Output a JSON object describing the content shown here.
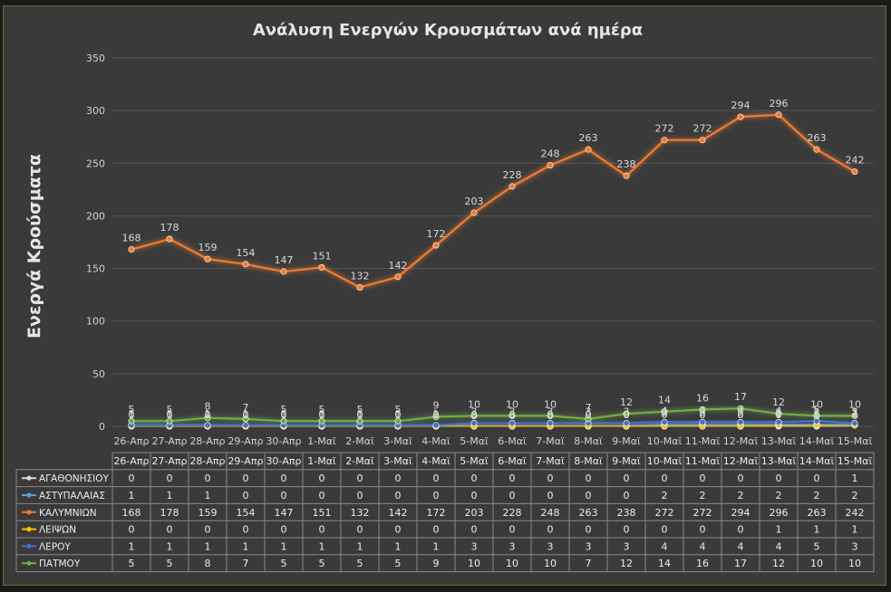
{
  "chart_data": {
    "type": "line",
    "title": "Ανάλυση Ενεργών Κρουσμάτων ανά ημέρα",
    "xlabel": "",
    "ylabel": "Ενεργά Κρούσματα",
    "ylim": [
      0,
      350
    ],
    "yticks": [
      0,
      50,
      100,
      150,
      200,
      250,
      300,
      350
    ],
    "grid": true,
    "legend": "data-table-below",
    "categories": [
      "26-Απρ",
      "27-Απρ",
      "28-Απρ",
      "29-Απρ",
      "30-Απρ",
      "1-Μαϊ",
      "2-Μαϊ",
      "3-Μαϊ",
      "4-Μαϊ",
      "5-Μαϊ",
      "6-Μαϊ",
      "7-Μαϊ",
      "8-Μαϊ",
      "9-Μαϊ",
      "10-Μαϊ",
      "11-Μαϊ",
      "12-Μαϊ",
      "13-Μαϊ",
      "14-Μαϊ",
      "15-Μαϊ"
    ],
    "series": [
      {
        "name": "ΑΓΑΘΟΝΗΣΙΟΥ",
        "color": "#d9d9d9",
        "values": [
          0,
          0,
          0,
          0,
          0,
          0,
          0,
          0,
          0,
          0,
          0,
          0,
          0,
          0,
          0,
          0,
          0,
          0,
          0,
          1
        ]
      },
      {
        "name": "ΑΣΤΥΠΑΛΑΙΑΣ",
        "color": "#5b9bd5",
        "values": [
          1,
          1,
          1,
          0,
          0,
          0,
          0,
          0,
          0,
          0,
          0,
          0,
          0,
          0,
          2,
          2,
          2,
          2,
          2,
          2
        ]
      },
      {
        "name": "ΚΑΛΥΜΝΙΩΝ",
        "color": "#ed7d31",
        "values": [
          168,
          178,
          159,
          154,
          147,
          151,
          132,
          142,
          172,
          203,
          228,
          248,
          263,
          238,
          272,
          272,
          294,
          296,
          263,
          242
        ]
      },
      {
        "name": "ΛΕΙΨΩΝ",
        "color": "#ffc000",
        "values": [
          0,
          0,
          0,
          0,
          0,
          0,
          0,
          0,
          0,
          0,
          0,
          0,
          0,
          0,
          0,
          0,
          0,
          1,
          1,
          1
        ]
      },
      {
        "name": "ΛΕΡΟΥ",
        "color": "#4472c4",
        "values": [
          1,
          1,
          1,
          1,
          1,
          1,
          1,
          1,
          1,
          3,
          3,
          3,
          3,
          3,
          4,
          4,
          4,
          4,
          5,
          3
        ]
      },
      {
        "name": "ΠΑΤΜΟΥ",
        "color": "#70ad47",
        "values": [
          5,
          5,
          8,
          7,
          5,
          5,
          5,
          5,
          9,
          10,
          10,
          10,
          7,
          12,
          14,
          16,
          17,
          12,
          10,
          10
        ]
      }
    ]
  }
}
